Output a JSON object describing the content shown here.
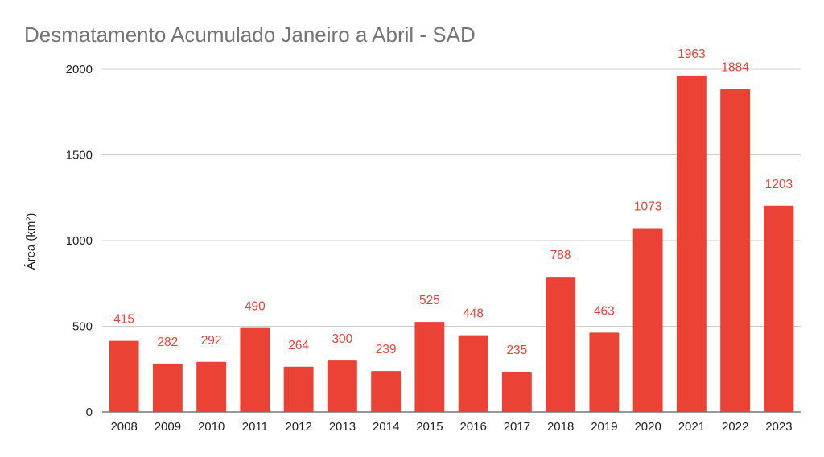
{
  "chart_data": {
    "type": "bar",
    "title": "Desmatamento Acumulado Janeiro a Abril - SAD",
    "xlabel": "",
    "ylabel": "Área (km²)",
    "ylim": [
      0,
      2000
    ],
    "yticks": [
      0,
      500,
      1000,
      1500,
      2000
    ],
    "grid": true,
    "color": "#ea4335",
    "categories": [
      "2008",
      "2009",
      "2010",
      "2011",
      "2012",
      "2013",
      "2014",
      "2015",
      "2016",
      "2017",
      "2018",
      "2019",
      "2020",
      "2021",
      "2022",
      "2023"
    ],
    "values": [
      415,
      282,
      292,
      490,
      264,
      300,
      239,
      525,
      448,
      235,
      788,
      463,
      1073,
      1963,
      1884,
      1203
    ]
  }
}
